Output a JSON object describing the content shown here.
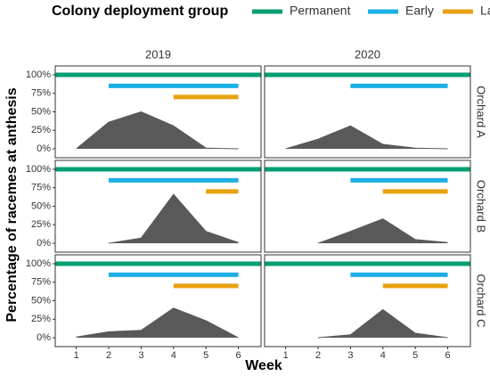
{
  "chart_data": {
    "type": "area",
    "legend_title": "Colony deployment group",
    "x_label": "Week",
    "y_label": "Percentage of racemes at anthesis",
    "color": "#595959",
    "series": [
      {
        "name": "Permanent",
        "color": "#009E73"
      },
      {
        "name": "Early",
        "color": "#1AAFE6"
      },
      {
        "name": "Later",
        "color": "#E8A10F"
      }
    ],
    "x": [
      1,
      2,
      3,
      4,
      5,
      6
    ],
    "xlim": [
      0.35,
      6.7
    ],
    "xticks": [
      1,
      2,
      3,
      4,
      5,
      6
    ],
    "ylim": [
      -12,
      112
    ],
    "yticks": [
      {
        "value": 0,
        "label": "0%"
      },
      {
        "value": 25,
        "label": "25%"
      },
      {
        "value": 50,
        "label": "50%"
      },
      {
        "value": 75,
        "label": "75%"
      },
      {
        "value": 100,
        "label": "100%"
      }
    ],
    "facet_columns": [
      "2019",
      "2020"
    ],
    "facets": [
      {
        "row": "Orchard A",
        "panels": [
          {
            "values": [
              0,
              36,
              50,
              31,
              1,
              0
            ],
            "segments": [
              {
                "x": [
                  0.35,
                  6.7
                ],
                "y": 100
              },
              {
                "x": [
                  2,
                  6
                ],
                "y": 85
              },
              {
                "x": [
                  4,
                  6
                ],
                "y": 70
              }
            ]
          },
          {
            "values": [
              0,
              13,
              31,
              6,
              1,
              0
            ],
            "segments": [
              {
                "x": [
                  0.35,
                  6.7
                ],
                "y": 100
              },
              {
                "x": [
                  3,
                  6
                ],
                "y": 85
              },
              null
            ]
          }
        ]
      },
      {
        "row": "Orchard B",
        "panels": [
          {
            "values": [
              null,
              0,
              7,
              66,
              16,
              1
            ],
            "segments": [
              {
                "x": [
                  0.35,
                  6.7
                ],
                "y": 100
              },
              {
                "x": [
                  2,
                  6
                ],
                "y": 85
              },
              {
                "x": [
                  5,
                  6
                ],
                "y": 70
              }
            ]
          },
          {
            "values": [
              null,
              0,
              16,
              33,
              5,
              1
            ],
            "segments": [
              {
                "x": [
                  0.35,
                  6.7
                ],
                "y": 100
              },
              {
                "x": [
                  3,
                  6
                ],
                "y": 85
              },
              {
                "x": [
                  4,
                  6
                ],
                "y": 70
              }
            ]
          }
        ]
      },
      {
        "row": "Orchard C",
        "panels": [
          {
            "values": [
              1,
              8,
              10,
              40,
              23,
              0
            ],
            "segments": [
              {
                "x": [
                  0.35,
                  6.7
                ],
                "y": 100
              },
              {
                "x": [
                  2,
                  6
                ],
                "y": 85
              },
              {
                "x": [
                  4,
                  6
                ],
                "y": 70
              }
            ]
          },
          {
            "values": [
              null,
              0,
              4,
              38,
              6,
              0
            ],
            "segments": [
              {
                "x": [
                  0.35,
                  6.7
                ],
                "y": 100
              },
              {
                "x": [
                  3,
                  6
                ],
                "y": 85
              },
              {
                "x": [
                  4,
                  6
                ],
                "y": 70
              }
            ]
          }
        ]
      }
    ]
  }
}
